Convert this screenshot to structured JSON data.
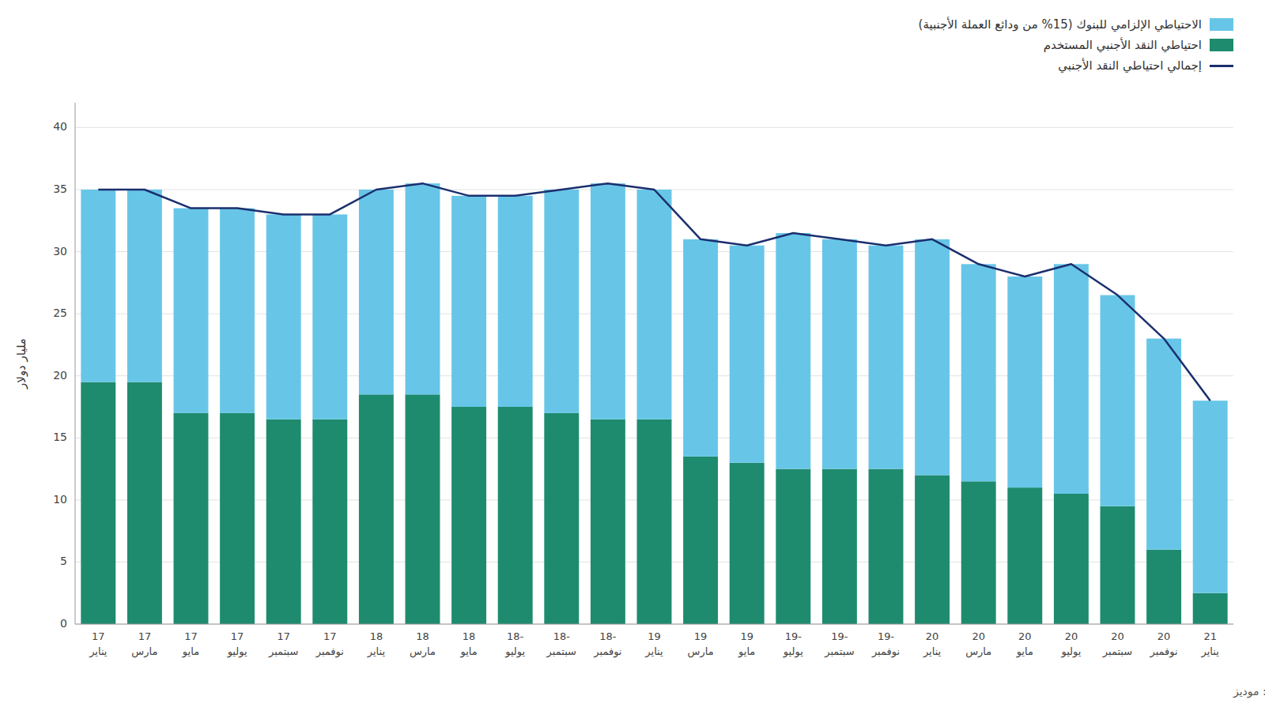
{
  "chart_data": {
    "type": "bar",
    "stacked": true,
    "categories": [
      [
        "17",
        "يناير"
      ],
      [
        "17",
        "مارس"
      ],
      [
        "17",
        "مايو"
      ],
      [
        "17",
        "يوليو"
      ],
      [
        "17",
        "سبتمبر"
      ],
      [
        "17",
        "نوفمبر"
      ],
      [
        "18",
        "يناير"
      ],
      [
        "18",
        "مارس"
      ],
      [
        "18",
        "مايو"
      ],
      [
        "18-",
        "يوليو"
      ],
      [
        "18-",
        "سبتمبر"
      ],
      [
        "18-",
        "نوفمبر"
      ],
      [
        "19",
        "يناير"
      ],
      [
        "19",
        "مارس"
      ],
      [
        "19",
        "مايو"
      ],
      [
        "19-",
        "يوليو"
      ],
      [
        "19-",
        "سبتمبر"
      ],
      [
        "19-",
        "نوفمبر"
      ],
      [
        "20",
        "يناير"
      ],
      [
        "20",
        "مارس"
      ],
      [
        "20",
        "مايو"
      ],
      [
        "20",
        "يوليو"
      ],
      [
        "20",
        "سبتمبر"
      ],
      [
        "20",
        "نوفمبر"
      ],
      [
        "21",
        "يناير"
      ]
    ],
    "series": [
      {
        "name": "احتياطي النقد الأجنبي المستخدم",
        "type": "bar",
        "color": "#1E8B6E",
        "values": [
          19.5,
          19.5,
          17.0,
          17.0,
          16.5,
          16.5,
          18.5,
          18.5,
          17.5,
          17.5,
          17.0,
          16.5,
          16.5,
          13.5,
          13.0,
          12.5,
          12.5,
          12.5,
          12.0,
          11.5,
          11.0,
          10.5,
          9.5,
          6.0,
          2.5
        ]
      },
      {
        "name": "الاحتياطي الإلزامي للبنوك (15% من ودائع العملة الأجنبية)",
        "type": "bar",
        "color": "#67C6E8",
        "values": [
          15.5,
          15.5,
          16.5,
          16.5,
          16.5,
          16.5,
          16.5,
          17.0,
          17.0,
          17.0,
          18.0,
          19.0,
          18.5,
          17.5,
          17.5,
          19.0,
          18.5,
          18.0,
          19.0,
          17.5,
          17.0,
          18.5,
          17.0,
          17.0,
          15.5
        ]
      },
      {
        "name": "إجمالي احتياطي النقد الأجنبي",
        "type": "line",
        "color": "#1B2F6E",
        "values": [
          35.0,
          35.0,
          33.5,
          33.5,
          33.0,
          33.0,
          35.0,
          35.5,
          34.5,
          34.5,
          35.0,
          35.5,
          35.0,
          31.0,
          30.5,
          31.5,
          31.0,
          30.5,
          31.0,
          29.0,
          28.0,
          29.0,
          26.5,
          23.0,
          18.0
        ]
      }
    ],
    "y_label": "مليار دولار",
    "annotations": [
      "المصدر: موديز"
    ],
    "ylim": [
      0,
      42
    ],
    "yticks": [
      0,
      5,
      10,
      15,
      20,
      25,
      30,
      35,
      40
    ],
    "grid": true,
    "legend": "upper right"
  }
}
